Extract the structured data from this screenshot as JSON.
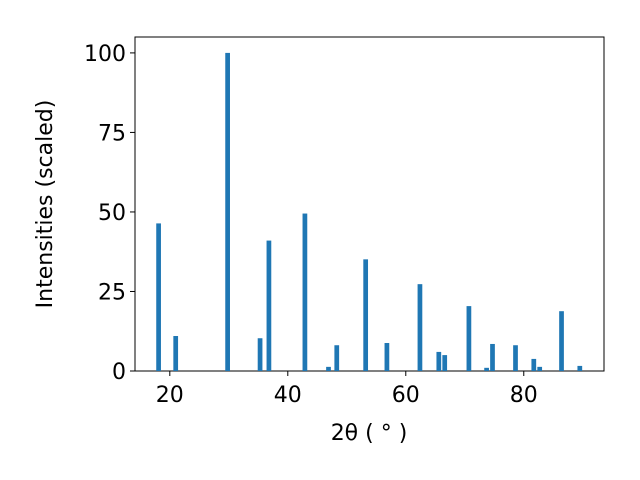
{
  "chart_data": {
    "type": "bar",
    "x": [
      18.1,
      21.0,
      29.8,
      35.3,
      36.8,
      42.9,
      46.9,
      48.3,
      53.2,
      56.8,
      62.4,
      65.6,
      66.6,
      70.7,
      73.7,
      74.7,
      78.6,
      81.7,
      82.7,
      86.4,
      89.5
    ],
    "values": [
      46.4,
      11,
      100,
      10.3,
      41,
      49.5,
      1.3,
      8.1,
      35.1,
      8.8,
      27.3,
      6,
      5,
      20.4,
      1,
      8.5,
      8.1,
      3.8,
      1.3,
      18.8,
      1.6
    ],
    "color": "#1f77b4",
    "xlabel": "2θ ( ° )",
    "ylabel": "Intensities (scaled)",
    "xlim": [
      14.1,
      93.6
    ],
    "xticks": [
      20,
      40,
      60,
      80
    ],
    "ylim": [
      0,
      105
    ],
    "yticks": [
      0,
      25,
      50,
      75,
      100
    ]
  }
}
